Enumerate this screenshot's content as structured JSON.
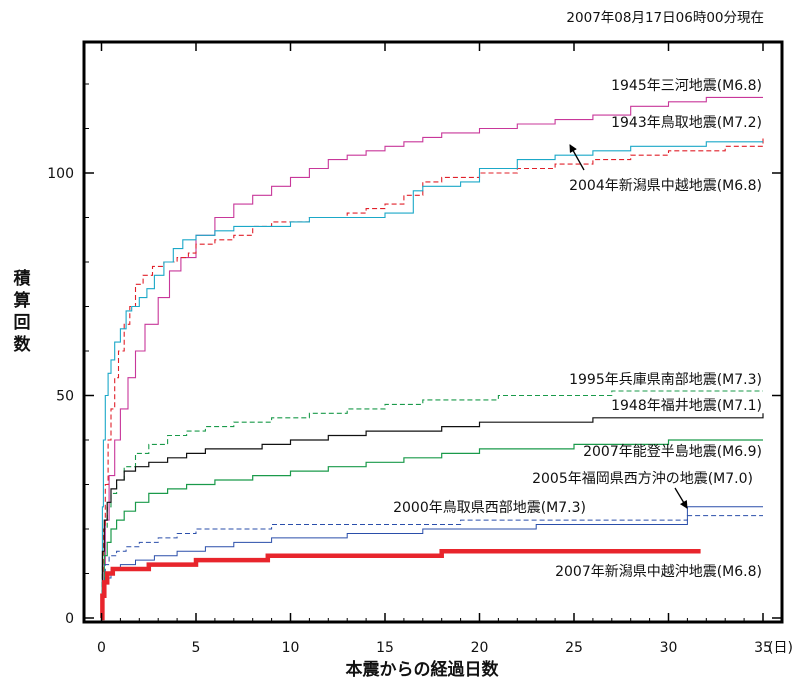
{
  "chart_data": {
    "type": "line",
    "timestamp": "2007年08月17日06時00分現在",
    "ylabel": "積算回数",
    "xlabel": "本震からの経過日数",
    "x_unit": "(日)",
    "xlim": [
      -1,
      35
    ],
    "ylim": [
      0,
      128
    ],
    "xticks": [
      0,
      5,
      10,
      15,
      20,
      25,
      30,
      35
    ],
    "yticks": [
      0,
      50,
      100
    ],
    "series": [
      {
        "name": "1945年三河地震(M6.8)",
        "color": "#c8379a",
        "width": 1.1,
        "dash": "",
        "x": [
          0,
          0.08,
          0.2,
          0.4,
          0.7,
          1.0,
          1.4,
          1.8,
          2.3,
          3.0,
          3.6,
          4.2,
          5,
          6,
          7,
          8,
          9,
          10,
          11,
          12,
          13,
          14,
          15,
          16,
          17,
          18,
          20,
          22,
          24,
          26,
          28,
          30,
          32,
          35
        ],
        "y": [
          0,
          12,
          22,
          32,
          40,
          47,
          54,
          60,
          66,
          72,
          78,
          81,
          86,
          90,
          93,
          95,
          97,
          99,
          101,
          103,
          104,
          105,
          106,
          107,
          108,
          109,
          110,
          111,
          112,
          113,
          115,
          116,
          117,
          117
        ]
      },
      {
        "name": "1943年鳥取地震(M7.2)",
        "color": "#e0202a",
        "width": 1.1,
        "dash": "5,3",
        "x": [
          0,
          0.05,
          0.1,
          0.2,
          0.35,
          0.5,
          0.7,
          0.9,
          1.2,
          1.5,
          1.8,
          2.2,
          2.7,
          3.3,
          4.0,
          4.6,
          5,
          6,
          7,
          8,
          9,
          10,
          11,
          12,
          13,
          14,
          15,
          16,
          17,
          18,
          20,
          22,
          24,
          26,
          28,
          30,
          33,
          35
        ],
        "y": [
          0,
          10,
          20,
          30,
          40,
          47,
          54,
          60,
          66,
          70,
          75,
          77,
          79,
          80,
          81,
          82,
          84,
          85,
          86,
          88,
          89,
          89,
          90,
          90,
          91,
          92,
          93,
          95,
          98,
          99,
          100,
          101,
          102,
          103,
          104,
          105,
          106,
          108
        ]
      },
      {
        "name": "2004年新潟県中越地震(M6.8)",
        "color": "#1ba8c8",
        "width": 1.1,
        "dash": "",
        "x": [
          0,
          0.05,
          0.1,
          0.2,
          0.35,
          0.5,
          0.7,
          1.0,
          1.3,
          1.6,
          2.0,
          2.4,
          2.8,
          3.3,
          3.8,
          4.3,
          5,
          6,
          7,
          8,
          9,
          10,
          11,
          12,
          13,
          14,
          15,
          16,
          16.5,
          17,
          18,
          19,
          20,
          22,
          24,
          26,
          28,
          30,
          32,
          35
        ],
        "y": [
          0,
          25,
          40,
          50,
          55,
          58,
          62,
          65,
          69,
          70,
          72,
          74,
          77,
          80,
          83,
          85,
          86,
          87,
          88,
          88,
          88,
          89,
          90,
          90,
          90,
          90,
          91,
          91,
          96,
          97,
          97,
          98,
          101,
          103,
          104,
          105,
          106,
          106,
          107,
          107
        ]
      },
      {
        "name": "1995年兵庫県南部地震(M7.3)",
        "color": "#1a9a4a",
        "width": 1.1,
        "dash": "5,3",
        "x": [
          0,
          0.05,
          0.15,
          0.3,
          0.5,
          0.8,
          1.2,
          1.8,
          2.5,
          3.5,
          4.5,
          5.5,
          7,
          9,
          11,
          13,
          15,
          17,
          19,
          21,
          24,
          27,
          30,
          35
        ],
        "y": [
          0,
          12,
          20,
          25,
          28,
          31,
          34,
          37,
          39,
          41,
          42,
          43,
          44,
          45,
          46,
          47,
          48,
          49,
          49,
          50,
          50,
          51,
          51,
          51
        ]
      },
      {
        "name": "1948年福井地震(M7.1)",
        "color": "#111111",
        "width": 1.2,
        "dash": "",
        "x": [
          0,
          0.05,
          0.15,
          0.3,
          0.5,
          0.8,
          1.2,
          1.8,
          2.5,
          3.5,
          4.5,
          5.5,
          7,
          8.5,
          10,
          12,
          14,
          16,
          18,
          20,
          23,
          26,
          30,
          35
        ],
        "y": [
          0,
          15,
          22,
          26,
          29,
          31,
          33,
          34,
          35,
          36,
          37,
          38,
          38,
          39,
          40,
          41,
          42,
          42,
          43,
          44,
          44,
          45,
          45,
          46
        ]
      },
      {
        "name": "2007年能登半島地震(M6.9)",
        "color": "#1a9a4a",
        "width": 1.2,
        "dash": "",
        "x": [
          0,
          0.05,
          0.15,
          0.3,
          0.5,
          0.8,
          1.2,
          1.8,
          2.5,
          3.5,
          4.5,
          6,
          8,
          10,
          12,
          14,
          16,
          18,
          20,
          22,
          25,
          28,
          30,
          35
        ],
        "y": [
          0,
          8,
          14,
          17,
          20,
          22,
          24,
          26,
          28,
          29,
          30,
          31,
          32,
          33,
          34,
          35,
          36,
          37,
          38,
          38,
          39,
          39,
          40,
          40
        ]
      },
      {
        "name": "2000年鳥取県西部地震(M7.3)",
        "color": "#2a4eaa",
        "width": 1.0,
        "dash": "5,3",
        "x": [
          0,
          0.05,
          0.2,
          0.4,
          0.8,
          1.3,
          2,
          3,
          4,
          5,
          7,
          9,
          11,
          13,
          15,
          17,
          19,
          21,
          23,
          25,
          27,
          29,
          31,
          35
        ],
        "y": [
          0,
          8,
          12,
          14,
          15,
          16,
          17,
          18,
          19,
          20,
          20,
          21,
          21,
          21,
          21,
          21,
          22,
          22,
          22,
          22,
          22,
          22,
          23,
          23
        ]
      },
      {
        "name": "2005年福岡県西方沖の地震(M7.0)",
        "color": "#2a4eaa",
        "width": 1.0,
        "dash": "",
        "x": [
          0,
          0.05,
          0.2,
          0.5,
          1,
          1.8,
          2.8,
          4,
          5.5,
          7,
          9,
          11,
          13,
          15,
          17,
          19,
          21,
          23,
          25,
          27,
          29,
          30.8,
          31,
          35
        ],
        "y": [
          0,
          5,
          9,
          11,
          12,
          13,
          14,
          15,
          16,
          17,
          18,
          18,
          19,
          19,
          20,
          20,
          20,
          21,
          21,
          21,
          21,
          21,
          25,
          25
        ]
      },
      {
        "name": "2007年新潟県中越沖地震(M6.8)",
        "color": "#e8252c",
        "width": 4.5,
        "dash": "",
        "x": [
          0,
          0.05,
          0.15,
          0.3,
          0.6,
          1.0,
          1.5,
          2.0,
          2.5,
          3.2,
          4.0,
          5.0,
          6.0,
          7.0,
          8.0,
          8.8,
          10,
          12,
          14,
          16,
          18,
          20,
          22,
          25,
          28,
          31.7
        ],
        "y": [
          0,
          5,
          8,
          10,
          11,
          11,
          11,
          11,
          12,
          12,
          12,
          13,
          13,
          13,
          13,
          14,
          14,
          14,
          14,
          14,
          15,
          15,
          15,
          15,
          15,
          15
        ]
      }
    ]
  }
}
